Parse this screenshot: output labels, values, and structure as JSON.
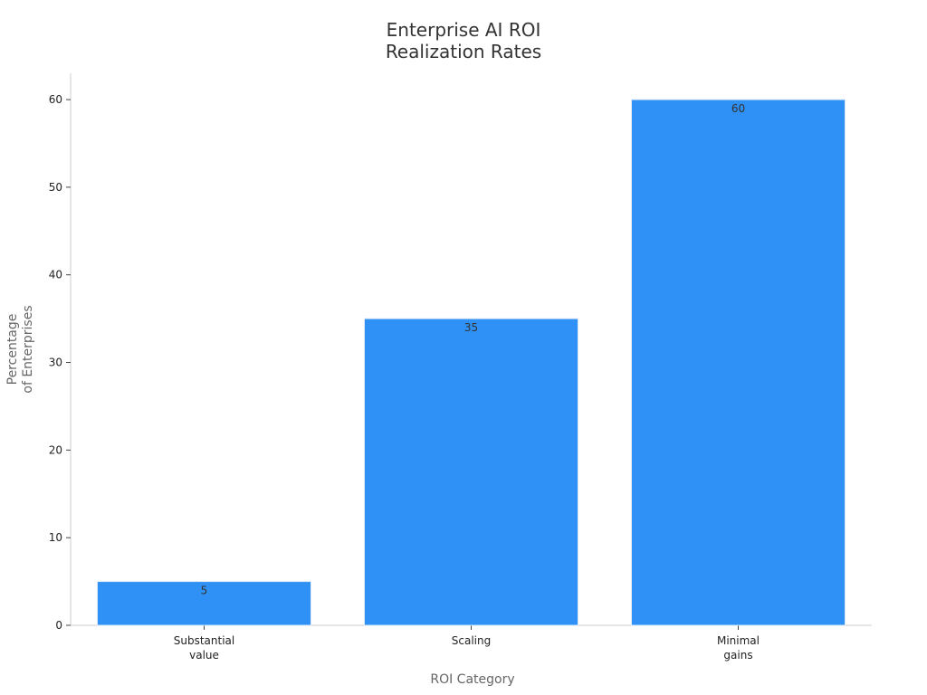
{
  "chart_data": {
    "type": "bar",
    "title": "Enterprise AI ROI\nRealization Rates",
    "x_label": "ROI Category",
    "y_label": "Percentage\nof Enterprises",
    "categories": [
      "Substantial\nvalue",
      "Scaling",
      "Minimal\ngains"
    ],
    "values": [
      5,
      35,
      60
    ],
    "color": "#2f91f5",
    "ylim": [
      0,
      63
    ],
    "yticks": [
      0,
      10,
      20,
      30,
      40,
      50,
      60
    ],
    "grid": false
  }
}
